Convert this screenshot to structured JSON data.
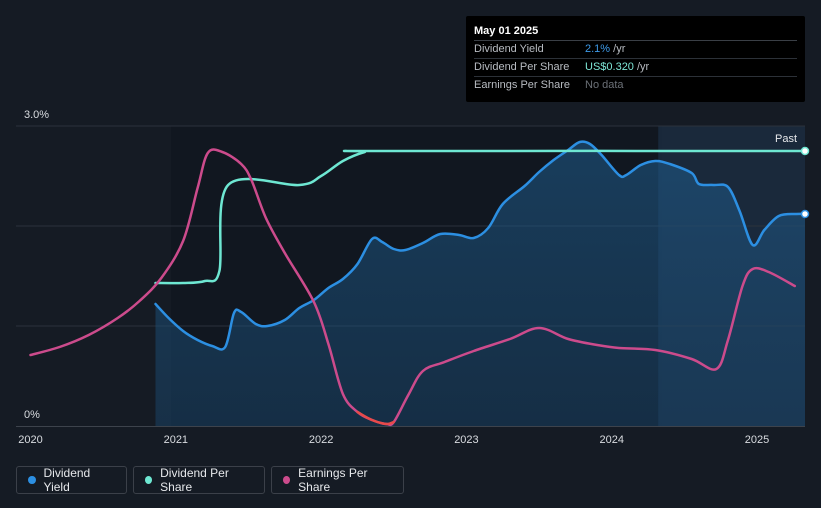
{
  "tooltip": {
    "date": "May 01 2025",
    "rows": [
      {
        "label": "Dividend Yield",
        "value": "2.1%",
        "unit": " /yr"
      },
      {
        "label": "Dividend Per Share",
        "value": "US$0.320",
        "unit": " /yr"
      },
      {
        "label": "Earnings Per Share",
        "value": "No data",
        "unit": ""
      }
    ]
  },
  "legend": [
    {
      "label": "Dividend Yield",
      "color": "#2c8fe2"
    },
    {
      "label": "Dividend Per Share",
      "color": "#6ee7d2"
    },
    {
      "label": "Earnings Per Share",
      "color": "#cc4b8c"
    }
  ],
  "chart_data": {
    "type": "line",
    "title": "",
    "xlabel": "",
    "ylabel": "",
    "past_label": "Past",
    "xlim": [
      2019.9,
      2025.33
    ],
    "ylim": [
      0,
      3.0
    ],
    "y_tick_labels": [
      {
        "value": 3.0,
        "label": "3.0%"
      },
      {
        "value": 0,
        "label": "0%"
      }
    ],
    "x_ticks": [
      2020,
      2021,
      2022,
      2023,
      2024,
      2025
    ],
    "forecast_band_start": 2024.32,
    "grid": true,
    "legend_position": "bottom-left",
    "series": [
      {
        "name": "Dividend Yield",
        "color": "#2c8fe2",
        "area": true,
        "end_marker": true,
        "points": [
          [
            2020.86,
            1.22
          ],
          [
            2020.95,
            1.08
          ],
          [
            2021.05,
            0.95
          ],
          [
            2021.15,
            0.86
          ],
          [
            2021.25,
            0.8
          ],
          [
            2021.34,
            0.79
          ],
          [
            2021.4,
            1.13
          ],
          [
            2021.45,
            1.14
          ],
          [
            2021.55,
            1.02
          ],
          [
            2021.63,
            1.0
          ],
          [
            2021.75,
            1.06
          ],
          [
            2021.85,
            1.18
          ],
          [
            2021.95,
            1.26
          ],
          [
            2022.05,
            1.38
          ],
          [
            2022.15,
            1.47
          ],
          [
            2022.25,
            1.62
          ],
          [
            2022.35,
            1.87
          ],
          [
            2022.42,
            1.84
          ],
          [
            2022.5,
            1.77
          ],
          [
            2022.58,
            1.76
          ],
          [
            2022.7,
            1.83
          ],
          [
            2022.82,
            1.92
          ],
          [
            2022.95,
            1.91
          ],
          [
            2023.05,
            1.88
          ],
          [
            2023.15,
            1.98
          ],
          [
            2023.25,
            2.22
          ],
          [
            2023.4,
            2.4
          ],
          [
            2023.5,
            2.54
          ],
          [
            2023.6,
            2.66
          ],
          [
            2023.7,
            2.76
          ],
          [
            2023.78,
            2.84
          ],
          [
            2023.85,
            2.82
          ],
          [
            2023.93,
            2.71
          ],
          [
            2024.05,
            2.51
          ],
          [
            2024.1,
            2.51
          ],
          [
            2024.2,
            2.61
          ],
          [
            2024.3,
            2.65
          ],
          [
            2024.4,
            2.62
          ],
          [
            2024.55,
            2.53
          ],
          [
            2024.6,
            2.42
          ],
          [
            2024.7,
            2.41
          ],
          [
            2024.8,
            2.39
          ],
          [
            2024.88,
            2.15
          ],
          [
            2024.97,
            1.81
          ],
          [
            2025.05,
            1.96
          ],
          [
            2025.15,
            2.1
          ],
          [
            2025.27,
            2.12
          ],
          [
            2025.33,
            2.12
          ]
        ]
      },
      {
        "name": "Dividend Per Share",
        "color": "#6ee7d2",
        "area": false,
        "end_marker": true,
        "points": [
          [
            2020.86,
            1.43
          ],
          [
            2021.05,
            1.43
          ],
          [
            2021.2,
            1.45
          ],
          [
            2021.3,
            1.55
          ],
          [
            2021.36,
            2.41
          ],
          [
            2021.85,
            2.41
          ],
          [
            2022.0,
            2.5
          ],
          [
            2022.15,
            2.65
          ],
          [
            2022.3,
            2.74
          ],
          [
            2022.4,
            2.75
          ],
          [
            2025.33,
            2.75
          ]
        ]
      },
      {
        "name": "Earnings Per Share",
        "color": "#cc4b8c",
        "color_negative": "#e84a4a",
        "area": false,
        "end_marker": false,
        "points": [
          [
            2020.0,
            0.71
          ],
          [
            2020.2,
            0.79
          ],
          [
            2020.4,
            0.91
          ],
          [
            2020.6,
            1.08
          ],
          [
            2020.75,
            1.25
          ],
          [
            2020.9,
            1.48
          ],
          [
            2021.05,
            1.85
          ],
          [
            2021.15,
            2.38
          ],
          [
            2021.22,
            2.73
          ],
          [
            2021.32,
            2.74
          ],
          [
            2021.45,
            2.62
          ],
          [
            2021.52,
            2.46
          ],
          [
            2021.62,
            2.08
          ],
          [
            2021.75,
            1.73
          ],
          [
            2021.95,
            1.24
          ],
          [
            2022.05,
            0.82
          ],
          [
            2022.15,
            0.32
          ],
          [
            2022.25,
            0.14
          ],
          [
            2022.35,
            0.06
          ],
          [
            2022.45,
            0.02
          ],
          [
            2022.5,
            0.04
          ],
          [
            2022.6,
            0.31
          ],
          [
            2022.7,
            0.55
          ],
          [
            2022.85,
            0.64
          ],
          [
            2023.05,
            0.75
          ],
          [
            2023.3,
            0.87
          ],
          [
            2023.5,
            0.98
          ],
          [
            2023.7,
            0.87
          ],
          [
            2023.9,
            0.81
          ],
          [
            2024.05,
            0.78
          ],
          [
            2024.3,
            0.76
          ],
          [
            2024.55,
            0.67
          ],
          [
            2024.72,
            0.57
          ],
          [
            2024.8,
            0.86
          ],
          [
            2024.9,
            1.4
          ],
          [
            2024.97,
            1.57
          ],
          [
            2025.08,
            1.54
          ],
          [
            2025.26,
            1.4
          ]
        ]
      }
    ]
  }
}
